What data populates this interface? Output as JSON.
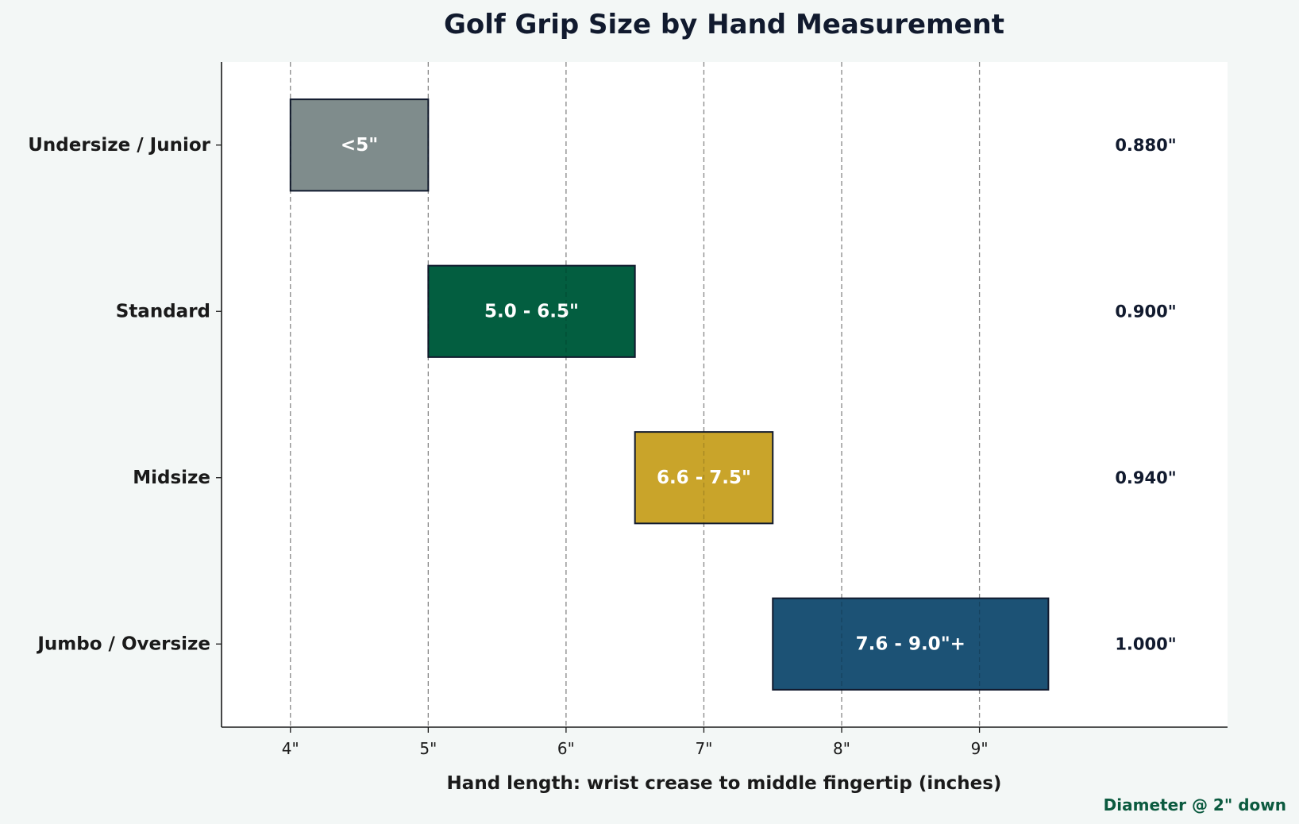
{
  "chart_data": {
    "type": "bar",
    "orientation": "horizontal-range",
    "title": "Golf Grip Size by Hand Measurement",
    "xlabel": "Hand length: wrist crease to middle fingertip (inches)",
    "ylabel": "",
    "xlim": [
      3.5,
      10.8
    ],
    "xticks": [
      {
        "value": 4,
        "label": "4\""
      },
      {
        "value": 5,
        "label": "5\""
      },
      {
        "value": 6,
        "label": "6\""
      },
      {
        "value": 7,
        "label": "7\""
      },
      {
        "value": 8,
        "label": "8\""
      },
      {
        "value": 9,
        "label": "9\""
      }
    ],
    "grid": "vertical dashed",
    "categories": [
      "Undersize / Junior",
      "Standard",
      "Midsize",
      "Jumbo / Oversize"
    ],
    "ranges": [
      {
        "start": 4.0,
        "end": 5.0,
        "label": "<5\"",
        "diameter": "0.880\"",
        "color": "#7f8c8c"
      },
      {
        "start": 5.0,
        "end": 6.5,
        "label": "5.0 - 6.5\"",
        "diameter": "0.900\"",
        "color": "#035e40"
      },
      {
        "start": 6.5,
        "end": 7.5,
        "label": "6.6 - 7.5\"",
        "diameter": "0.940\"",
        "color": "#c9a42a"
      },
      {
        "start": 7.5,
        "end": 9.5,
        "label": "7.6 - 9.0\"+",
        "diameter": "1.000\"",
        "color": "#1c5275"
      }
    ],
    "annotation": "Diameter @ 2\" down"
  },
  "colors": {
    "background": "#f3f7f6",
    "plot_background": "#ffffff",
    "bar_edge": "#111a2e",
    "grid": "#a8a8a8",
    "annotation": "#0b5a3f"
  }
}
